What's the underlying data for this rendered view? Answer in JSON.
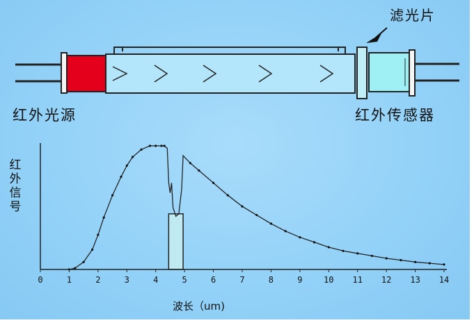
{
  "labels": {
    "source": "红外光源",
    "sensor": "红外传感器",
    "filter": "滤光片",
    "y_axis": "红外信号",
    "x_axis": "波长（um)"
  },
  "colors": {
    "background": "#94d2f8",
    "source_block": "#e4001b",
    "sensor_block": "#9ff0f4",
    "tube": "#b4e6fb",
    "curve": "#222222",
    "band": "#bfeaf2"
  },
  "chart_data": {
    "type": "line",
    "title": "",
    "xlabel": "波长（um)",
    "ylabel": "红外信号",
    "xlim": [
      0,
      14
    ],
    "ylim": [
      0,
      1
    ],
    "grid": false,
    "x_ticks": [
      "0",
      "1",
      "2",
      "3",
      "4",
      "5",
      "6",
      "7",
      "8",
      "9",
      "10",
      "11",
      "12",
      "13",
      "14"
    ],
    "series": [
      {
        "x": [
          1.0,
          1.2,
          1.5,
          1.8,
          2.0,
          2.2,
          2.5,
          2.8,
          3.0,
          3.2,
          3.5,
          3.8,
          4.0,
          4.2,
          4.3,
          4.4,
          4.45,
          4.5,
          4.55,
          4.6,
          4.7,
          4.8,
          4.9,
          4.95,
          5.2,
          5.5,
          6.0,
          6.5,
          7.0,
          7.5,
          8.0,
          8.5,
          9.0,
          9.5,
          10.0,
          10.5,
          11.0,
          11.5,
          12.0,
          12.5,
          13.0,
          13.5,
          14.0
        ],
        "y": [
          0.0,
          0.01,
          0.06,
          0.16,
          0.28,
          0.42,
          0.6,
          0.75,
          0.84,
          0.91,
          0.97,
          1.0,
          1.0,
          1.0,
          1.0,
          0.98,
          0.7,
          0.62,
          0.7,
          0.5,
          0.43,
          0.45,
          0.65,
          0.92,
          0.86,
          0.8,
          0.7,
          0.6,
          0.51,
          0.44,
          0.37,
          0.31,
          0.26,
          0.22,
          0.18,
          0.15,
          0.13,
          0.11,
          0.09,
          0.075,
          0.06,
          0.05,
          0.04
        ]
      }
    ],
    "band": {
      "from": 4.45,
      "to": 4.95,
      "top": 0.45
    }
  }
}
